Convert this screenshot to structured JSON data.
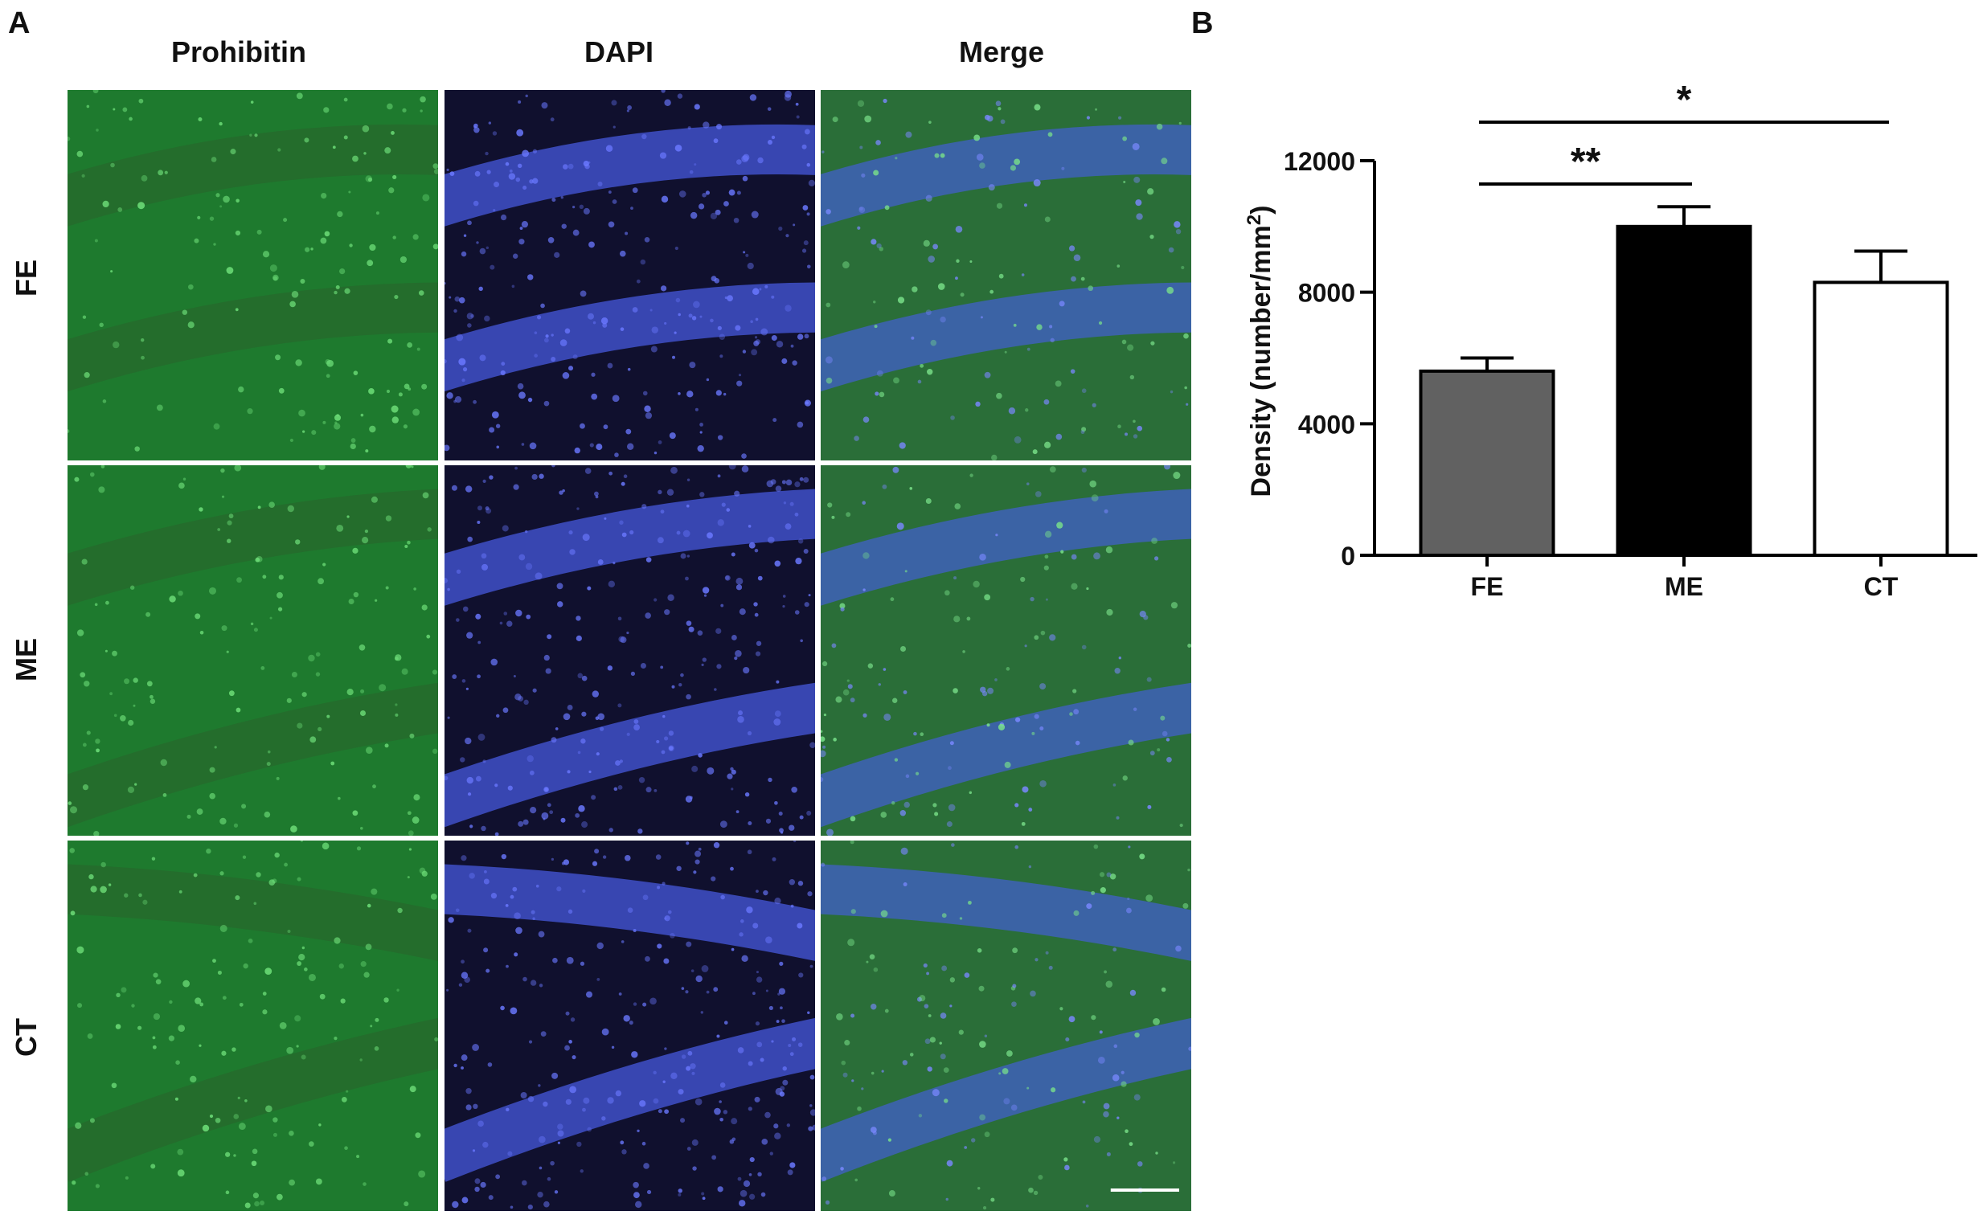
{
  "panel_a": {
    "letter": "A",
    "columns": [
      "Prohibitin",
      "DAPI",
      "Merge"
    ],
    "rows": [
      "FE",
      "ME",
      "CT"
    ],
    "colors": {
      "prohibitin": "#1e7a2e",
      "dapi": "#10102e",
      "merge": "#2a6e38",
      "nuclear_band": "#4050c8"
    }
  },
  "panel_b": {
    "letter": "B"
  },
  "chart_data": {
    "type": "bar",
    "categories": [
      "FE",
      "ME",
      "CT"
    ],
    "values": [
      5600,
      10000,
      8300
    ],
    "errors": [
      400,
      600,
      950
    ],
    "bar_colors": [
      "#616161",
      "#000000",
      "#ffffff"
    ],
    "xlabel": "",
    "ylabel_prefix": "Density (number/mm",
    "ylabel_sup": "2",
    "ylabel_suffix": ")",
    "ylim": [
      0,
      12000
    ],
    "yticks": [
      0,
      4000,
      8000,
      12000
    ],
    "significance": [
      {
        "from": "FE",
        "to": "ME",
        "label": "**"
      },
      {
        "from": "FE",
        "to": "CT",
        "label": "*"
      }
    ]
  }
}
